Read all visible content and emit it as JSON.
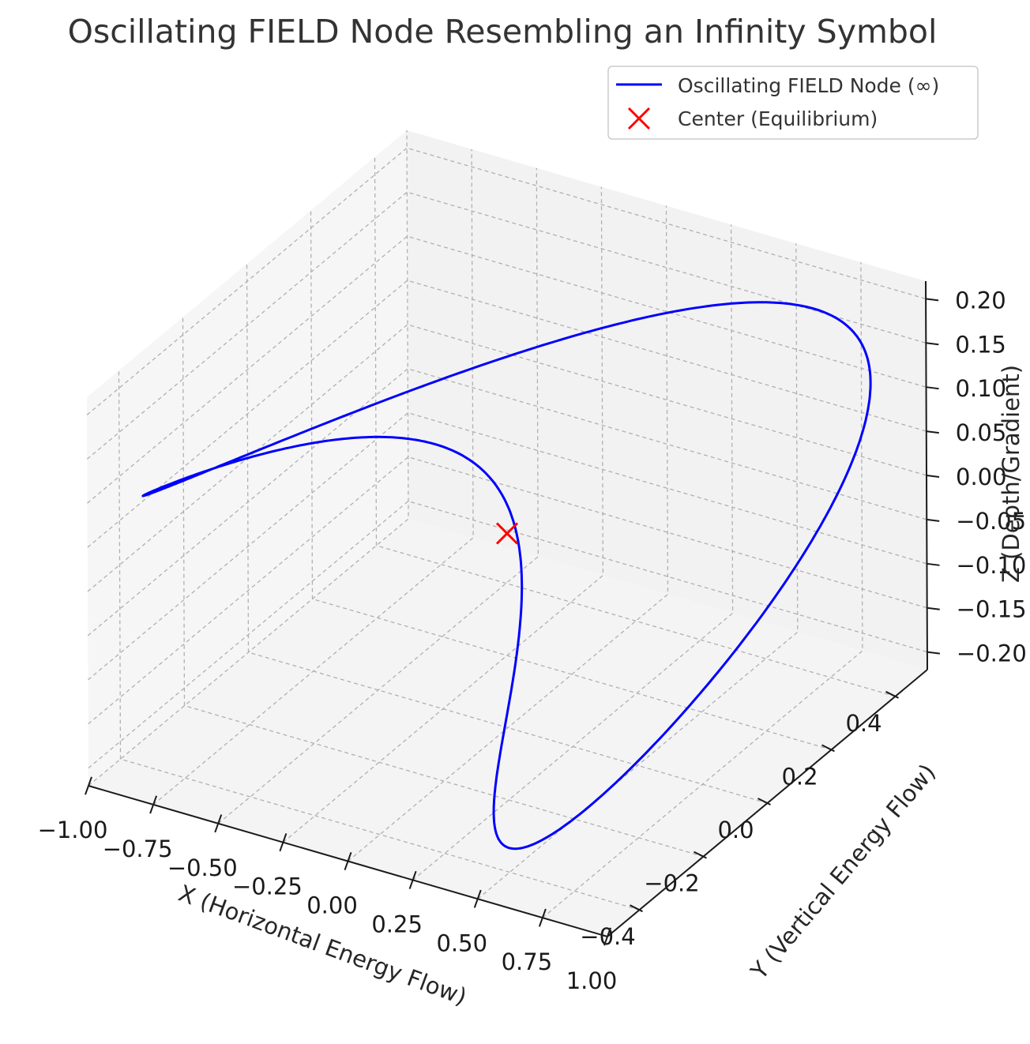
{
  "chart_data": {
    "type": "line3d",
    "title": "Oscillating FIELD Node Resembling an Infinity Symbol",
    "xlabel": "X (Horizontal Energy Flow)",
    "ylabel": "Y (Vertical Energy Flow)",
    "zlabel": "Z (Depth/Gradient)",
    "x_ticks": [
      "−1.00",
      "−0.75",
      "−0.50",
      "−0.25",
      "0.00",
      "0.25",
      "0.50",
      "0.75",
      "1.00"
    ],
    "y_ticks": [
      "−0.4",
      "−0.2",
      "0.0",
      "0.2",
      "0.4"
    ],
    "z_ticks": [
      "−0.20",
      "−0.15",
      "−0.10",
      "−0.05",
      "0.00",
      "0.05",
      "0.10",
      "0.15",
      "0.20"
    ],
    "xlim": [
      -1.0,
      1.0
    ],
    "ylim": [
      -0.5,
      0.5
    ],
    "zlim": [
      -0.22,
      0.22
    ],
    "grid": true,
    "legend_position": "top-right",
    "series": [
      {
        "name": "Oscillating FIELD Node (∞)",
        "kind": "line",
        "color": "#0000ff",
        "curve": "x = cos(t), y = 0.5 sin(2t), z = 0.2 sin(t), t in [0, 2π]"
      },
      {
        "name": "Center (Equilibrium)",
        "kind": "marker",
        "marker": "x",
        "color": "#ff0000",
        "x": 0,
        "y": 0,
        "z": 0
      }
    ]
  }
}
